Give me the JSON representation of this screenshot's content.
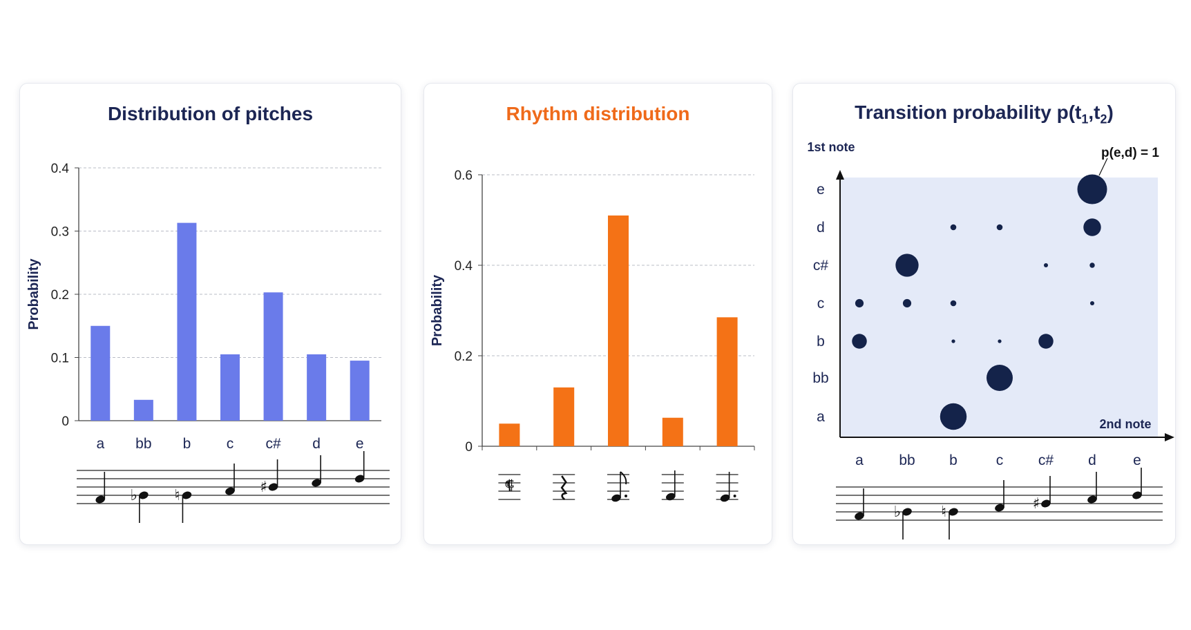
{
  "chart_data": [
    {
      "type": "bar",
      "title": "Distribution of pitches",
      "ylabel": "Probability",
      "categories": [
        "a",
        "bb",
        "b",
        "c",
        "c#",
        "d",
        "e"
      ],
      "values": [
        0.15,
        0.033,
        0.313,
        0.105,
        0.203,
        0.105,
        0.095
      ],
      "ylim": [
        0,
        0.4
      ],
      "yticks": [
        "0",
        "0.1",
        "0.2",
        "0.3",
        "0.4"
      ],
      "color": "#6a7bea",
      "grid": true
    },
    {
      "type": "bar",
      "title": "Rhythm distribution",
      "ylabel": "Probability",
      "categories": [
        "sixteenth rest",
        "quarter rest",
        "dotted eighth note",
        "quarter note",
        "dotted quarter note"
      ],
      "values": [
        0.05,
        0.13,
        0.51,
        0.063,
        0.285
      ],
      "ylim": [
        0,
        0.6
      ],
      "yticks": [
        "0",
        "0.2",
        "0.4",
        "0.6"
      ],
      "color": "#f47216",
      "grid": true
    },
    {
      "type": "scatter",
      "title_main": "Transition probability p(t",
      "title_sub1": "1",
      "title_comma": ",t",
      "title_sub2": "2",
      "title_end": ")",
      "xlabel": "2nd note",
      "ylabel": "1st note",
      "x_categories": [
        "a",
        "bb",
        "b",
        "c",
        "c#",
        "d",
        "e"
      ],
      "y_categories": [
        "a",
        "bb",
        "b",
        "c",
        "c#",
        "d",
        "e"
      ],
      "annotation": "p(e,d) = 1",
      "color": "#14234a",
      "background": "#e4eaf8",
      "points": [
        {
          "from": "e",
          "to": "d",
          "p": 1.0
        },
        {
          "from": "d",
          "to": "b",
          "p": 0.04
        },
        {
          "from": "d",
          "to": "c",
          "p": 0.04
        },
        {
          "from": "d",
          "to": "d",
          "p": 0.35
        },
        {
          "from": "c#",
          "to": "bb",
          "p": 0.6
        },
        {
          "from": "c#",
          "to": "c#",
          "p": 0.02
        },
        {
          "from": "c#",
          "to": "d",
          "p": 0.03
        },
        {
          "from": "c",
          "to": "a",
          "p": 0.08
        },
        {
          "from": "c",
          "to": "bb",
          "p": 0.08
        },
        {
          "from": "c",
          "to": "b",
          "p": 0.04
        },
        {
          "from": "c",
          "to": "d",
          "p": 0.02
        },
        {
          "from": "b",
          "to": "a",
          "p": 0.25
        },
        {
          "from": "b",
          "to": "b",
          "p": 0.015
        },
        {
          "from": "b",
          "to": "c",
          "p": 0.015
        },
        {
          "from": "b",
          "to": "c#",
          "p": 0.25
        },
        {
          "from": "bb",
          "to": "c",
          "p": 0.78
        },
        {
          "from": "a",
          "to": "b",
          "p": 0.8
        }
      ]
    }
  ]
}
